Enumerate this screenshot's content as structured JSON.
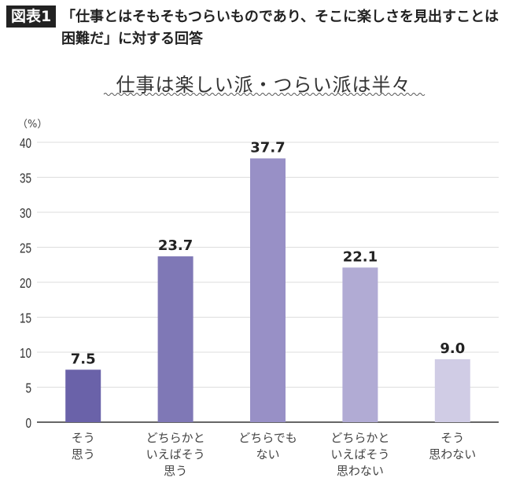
{
  "header": {
    "figure_label": "図表1",
    "question_line1": "「仕事とはそもそもつらいものであり、そこに楽しさを見出すことは",
    "question_line2": "困難だ」に対する回答"
  },
  "chart_data": {
    "type": "bar",
    "title": "仕事は楽しい派・つらい派は半々",
    "ylabel": "（%）",
    "xlabel": "",
    "ylim": [
      0,
      40
    ],
    "yticks": [
      0,
      5,
      10,
      15,
      20,
      25,
      30,
      35,
      40
    ],
    "grid": true,
    "categories": [
      [
        "そう",
        "思う"
      ],
      [
        "どちらかと",
        "いえばそう",
        "思う"
      ],
      [
        "どちらでも",
        "ない"
      ],
      [
        "どちらかと",
        "いえばそう",
        "思わない"
      ],
      [
        "そう",
        "思わない"
      ]
    ],
    "values": [
      7.5,
      23.7,
      37.7,
      22.1,
      9.0
    ],
    "data_labels": [
      "7.5",
      "23.7",
      "37.7",
      "22.1",
      "9.0"
    ],
    "colors": [
      "#6a62a9",
      "#7f78b6",
      "#9890c6",
      "#b1abd4",
      "#d0cce5"
    ]
  }
}
